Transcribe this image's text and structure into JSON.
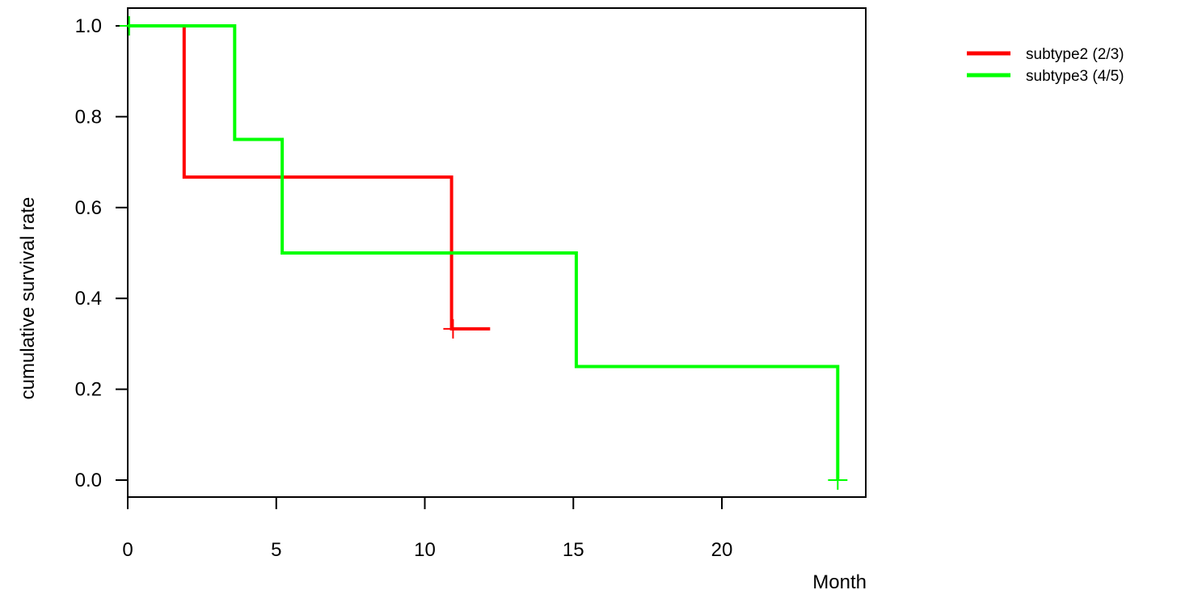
{
  "chart_data": {
    "type": "line",
    "title": "",
    "xlabel": "Month",
    "ylabel": "cumulative survival rate",
    "xlim": [
      0,
      25
    ],
    "ylim": [
      0,
      1
    ],
    "x_ticks": [
      "0",
      "5",
      "10",
      "15",
      "20"
    ],
    "y_ticks": [
      "0.0",
      "0.2",
      "0.4",
      "0.6",
      "0.8",
      "1.0"
    ],
    "grid": false,
    "legend_position": "top-right",
    "series": [
      {
        "name": "subtype2 (2/3)",
        "color": "#ff0000",
        "step_points": [
          [
            0,
            1.0
          ],
          [
            1.9,
            1.0
          ],
          [
            1.9,
            0.667
          ],
          [
            10.9,
            0.667
          ],
          [
            10.9,
            0.333
          ],
          [
            12.2,
            0.333
          ]
        ],
        "censored": [
          [
            10.95,
            0.333
          ]
        ]
      },
      {
        "name": "subtype3 (4/5)",
        "color": "#00ff00",
        "step_points": [
          [
            0,
            1.0
          ],
          [
            3.6,
            1.0
          ],
          [
            3.6,
            0.75
          ],
          [
            5.2,
            0.75
          ],
          [
            5.2,
            0.5
          ],
          [
            15.1,
            0.5
          ],
          [
            15.1,
            0.25
          ],
          [
            23.9,
            0.25
          ],
          [
            23.9,
            0.0
          ]
        ],
        "censored": [
          [
            0.05,
            1.0
          ],
          [
            23.9,
            0.0
          ]
        ]
      }
    ]
  }
}
